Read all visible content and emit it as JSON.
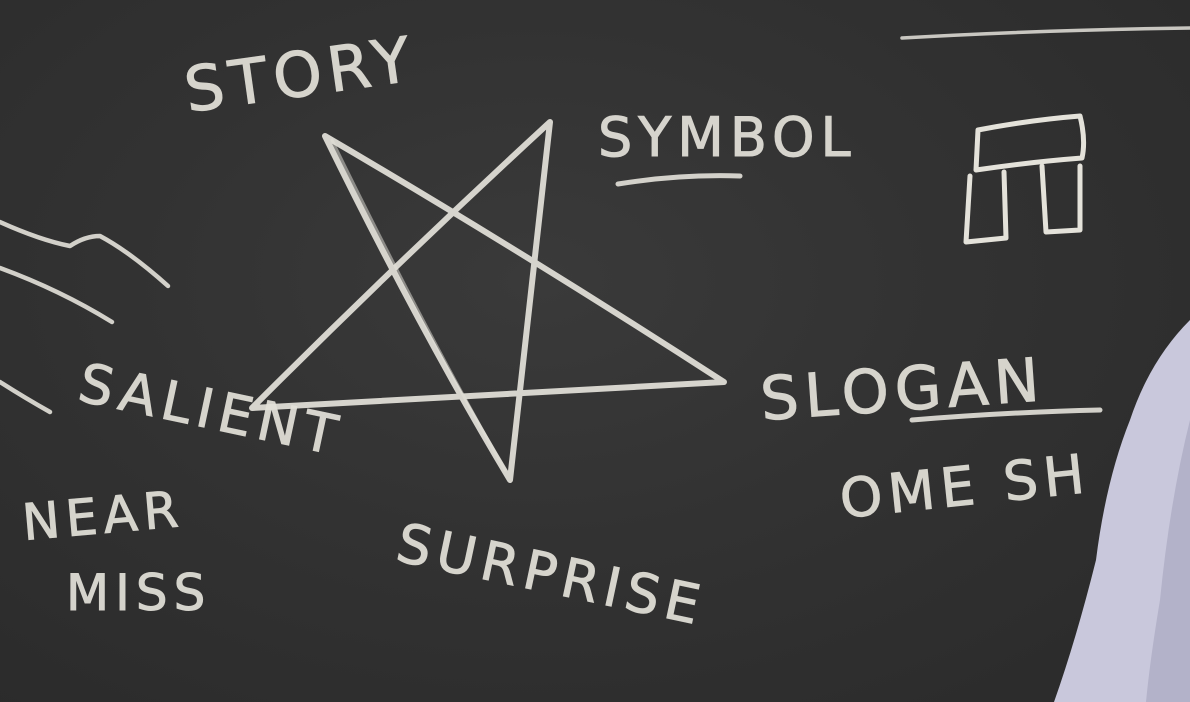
{
  "scene": {
    "board_color": "#323232",
    "chalk_color": "#e4e2da",
    "shirt_color": "#c9c8dc"
  },
  "words": {
    "story": "STORY",
    "symbol": "SYMBOL",
    "slogan": "SLOGAN",
    "one_shot_fragment": "OME SH",
    "salient": "SALIENT",
    "near": "NEAR",
    "miss": "MISS",
    "surprise": "SURPRISE"
  },
  "drawings": {
    "center_shape": "pentagram",
    "top_right_icon": "stonehenge-sketch"
  }
}
